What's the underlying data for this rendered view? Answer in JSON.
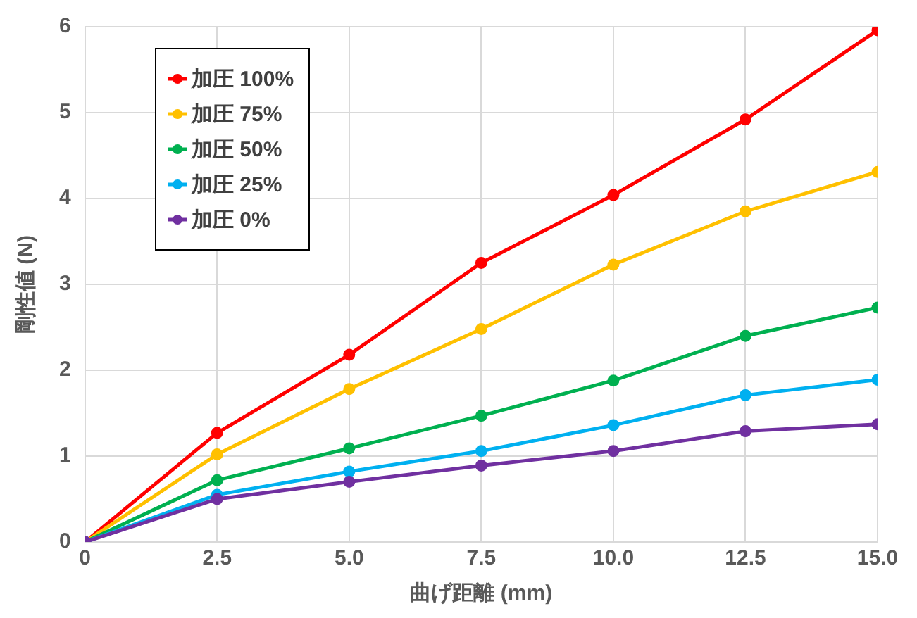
{
  "chart_data": {
    "type": "line",
    "xlabel": "曲げ距離 (mm)",
    "ylabel": "剛性値 (N)",
    "x": [
      0,
      2.5,
      5,
      7.5,
      10,
      12.5,
      15
    ],
    "series": [
      {
        "name": "加圧 100%",
        "color": "#ff0000",
        "values": [
          0,
          1.27,
          2.18,
          3.25,
          4.04,
          4.92,
          5.96
        ]
      },
      {
        "name": "加圧 75%",
        "color": "#ffc000",
        "values": [
          0,
          1.02,
          1.78,
          2.48,
          3.23,
          3.85,
          4.31
        ]
      },
      {
        "name": "加圧 50%",
        "color": "#00b050",
        "values": [
          0,
          0.72,
          1.09,
          1.47,
          1.88,
          2.4,
          2.73
        ]
      },
      {
        "name": "加圧 25%",
        "color": "#00b0f0",
        "values": [
          0,
          0.55,
          0.82,
          1.06,
          1.36,
          1.71,
          1.89
        ]
      },
      {
        "name": "加圧 0%",
        "color": "#7030a0",
        "values": [
          0,
          0.5,
          0.7,
          0.89,
          1.06,
          1.29,
          1.37
        ]
      }
    ],
    "xlim": [
      0,
      15
    ],
    "xticks": [
      0,
      2.5,
      {
        "value": 5,
        "label": "5.0"
      },
      7.5,
      {
        "value": 10,
        "label": "10.0"
      },
      12.5,
      {
        "value": 15,
        "label": "15.0"
      }
    ],
    "ylim": [
      0,
      6
    ],
    "yticks": [
      0,
      1,
      2,
      3,
      4,
      5,
      6
    ],
    "grid": true,
    "legend": "top left",
    "marker": "circle",
    "line_style": "solid"
  }
}
